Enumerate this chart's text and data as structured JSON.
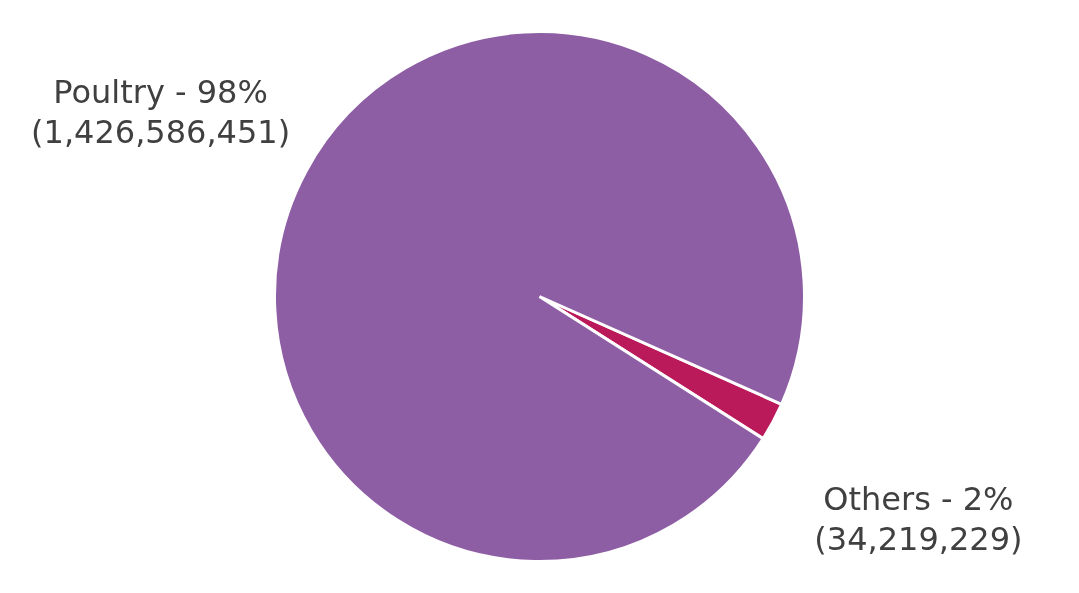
{
  "chart_data": {
    "type": "pie",
    "categories": [
      "Poultry",
      "Others"
    ],
    "values": [
      1426586451,
      34219229
    ],
    "colors": [
      "#8e5ea5",
      "#bb1a5a"
    ],
    "value_labels": [
      "- 98%\n(1,426,586,451)",
      "- 2%\n(34,219,229)"
    ],
    "legend": false
  }
}
